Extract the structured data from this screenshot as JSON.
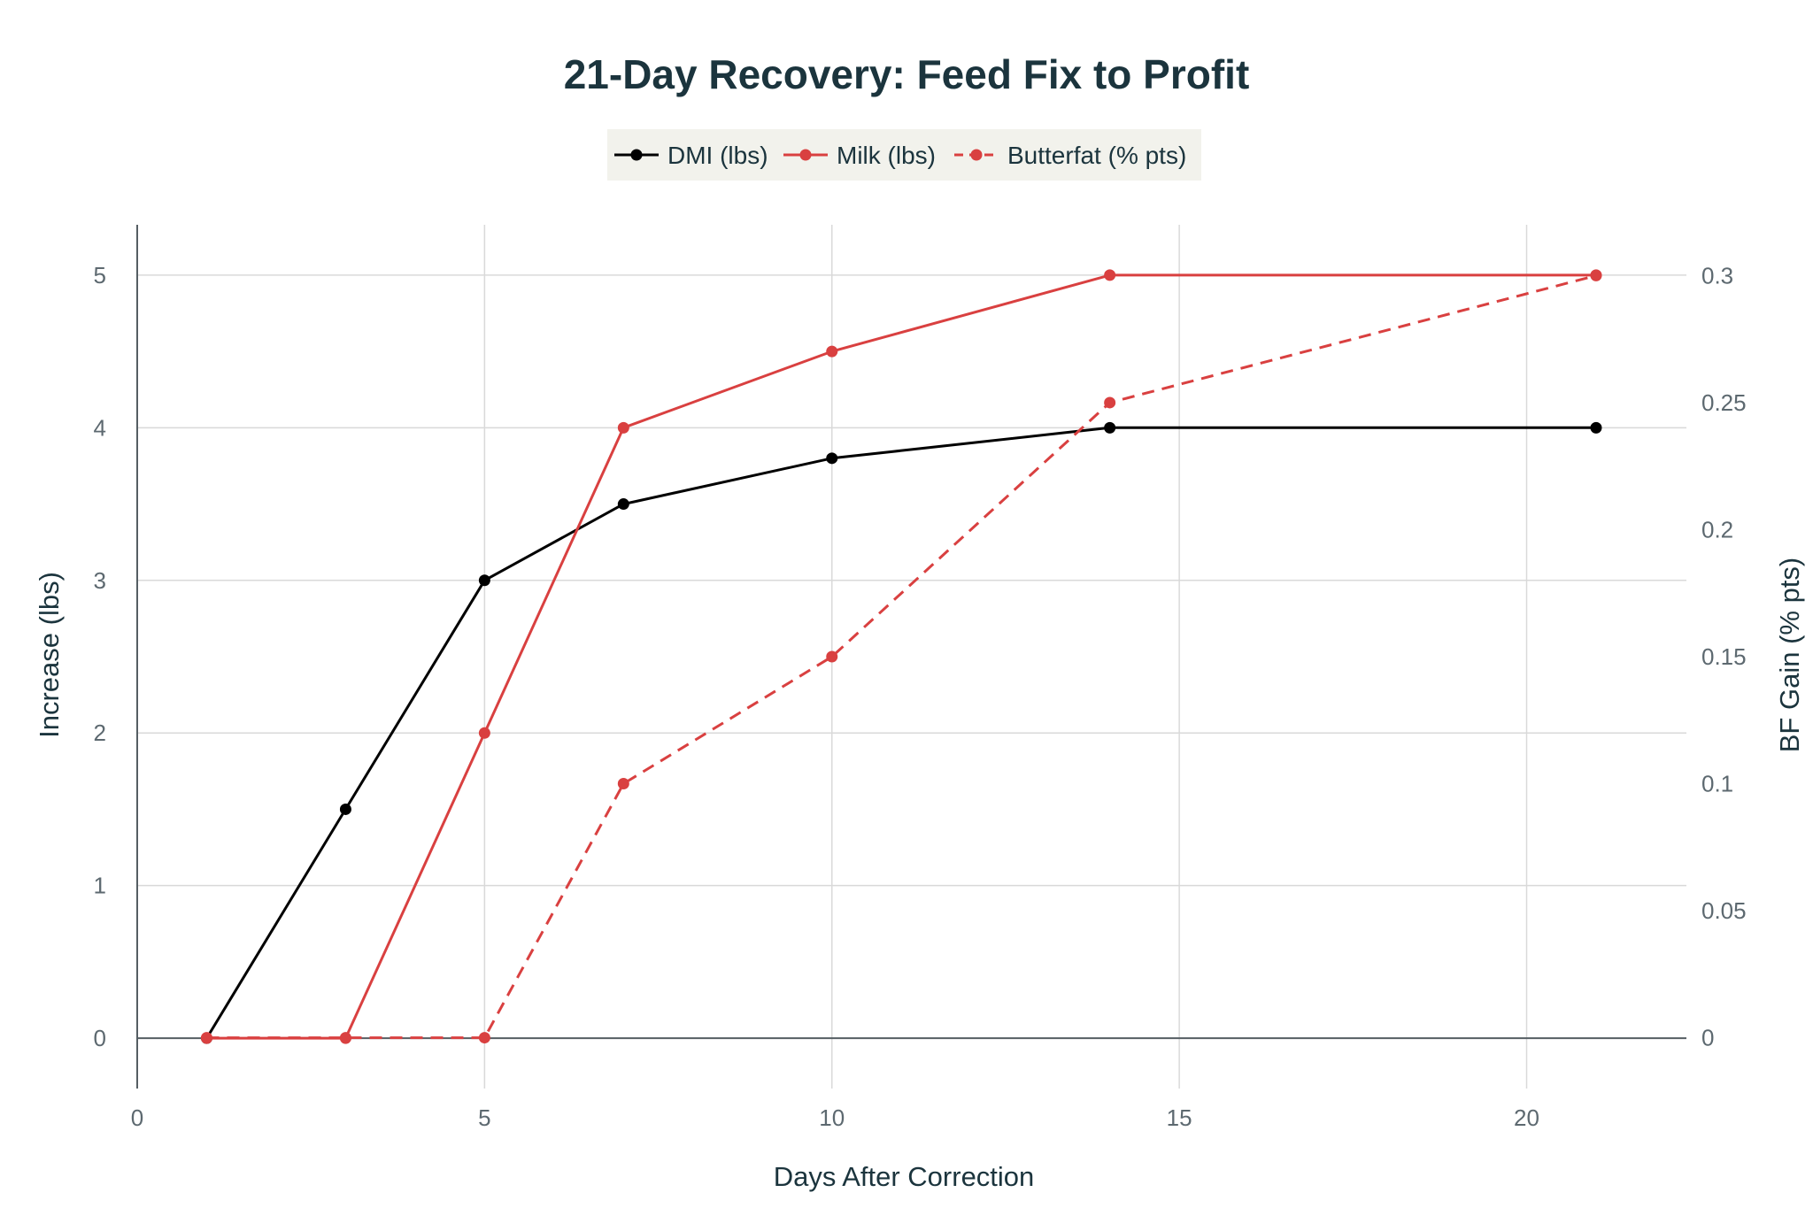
{
  "chart_data": {
    "type": "line",
    "title": "21-Day Recovery: Feed Fix to Profit",
    "xlabel": "Days After Correction",
    "ylabel": "Increase (lbs)",
    "y2label": "BF Gain (% pts)",
    "xlim": [
      0,
      22.3
    ],
    "ylim": [
      -0.33,
      5.33
    ],
    "y2lim": [
      -0.02,
      0.32
    ],
    "x_ticks": [
      0,
      5,
      10,
      15,
      20
    ],
    "y_ticks": [
      0,
      1,
      2,
      3,
      4,
      5
    ],
    "y2_ticks": [
      0,
      0.05,
      0.1,
      0.15,
      0.2,
      0.25,
      0.3
    ],
    "y2_tick_labels": [
      "0",
      "0.05",
      "0.1",
      "0.15",
      "0.2",
      "0.25",
      "0.3"
    ],
    "grid": true,
    "legend_position": "top-center",
    "x": [
      1,
      3,
      5,
      7,
      10,
      14,
      21
    ],
    "series": [
      {
        "name": "DMI (lbs)",
        "axis": "left",
        "color": "#000000",
        "dash": "solid",
        "values": [
          0,
          1.5,
          3,
          3.5,
          3.8,
          4,
          4
        ]
      },
      {
        "name": "Milk (lbs)",
        "axis": "left",
        "color": "#d94040",
        "dash": "solid",
        "values": [
          0,
          0,
          2,
          4,
          4.5,
          5,
          5
        ]
      },
      {
        "name": "Butterfat (% pts)",
        "axis": "right",
        "color": "#d94040",
        "dash": "dashed",
        "values": [
          0,
          0,
          0,
          0.1,
          0.15,
          0.25,
          0.3
        ]
      }
    ],
    "colors": {
      "text": "#1b343d",
      "tick": "#5d6970",
      "grid": "#d9d9d9",
      "legend_bg": "#f2f2ec"
    }
  }
}
